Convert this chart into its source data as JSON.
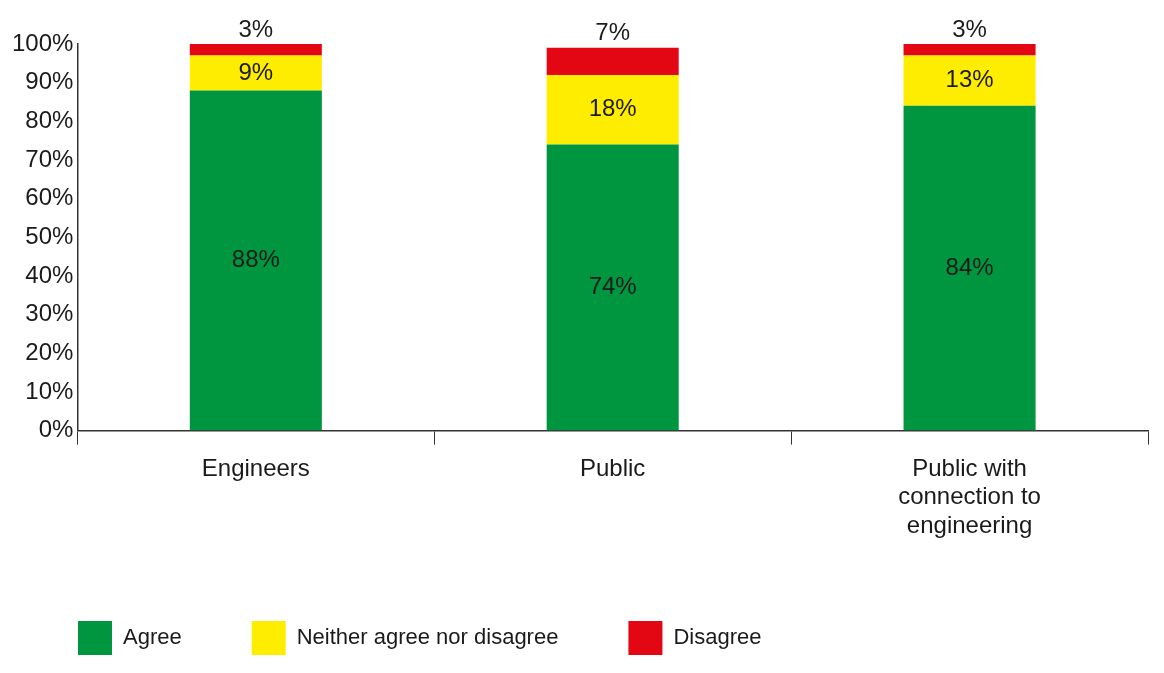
{
  "chart_data": {
    "type": "bar",
    "stacked": true,
    "categories": [
      "Engineers",
      "Public",
      "Public with connection to engineering"
    ],
    "series": [
      {
        "name": "Agree",
        "color": "#009640",
        "values": [
          88,
          74,
          84
        ],
        "value_labels": [
          "88%",
          "74%",
          "84%"
        ]
      },
      {
        "name": "Neither agree nor disagree",
        "color": "#ffed00",
        "values": [
          9,
          18,
          13
        ],
        "value_labels": [
          "9%",
          "18%",
          "13%"
        ]
      },
      {
        "name": "Disagree",
        "color": "#e30613",
        "values": [
          3,
          7,
          3
        ],
        "value_labels": [
          "3%",
          "7%",
          "3%"
        ]
      }
    ],
    "ylim": [
      0,
      100
    ],
    "yticks": [
      {
        "value": 0,
        "label": "0%"
      },
      {
        "value": 10,
        "label": "10%"
      },
      {
        "value": 20,
        "label": "20%"
      },
      {
        "value": 30,
        "label": "30%"
      },
      {
        "value": 40,
        "label": "40%"
      },
      {
        "value": 50,
        "label": "50%"
      },
      {
        "value": 60,
        "label": "60%"
      },
      {
        "value": 70,
        "label": "70%"
      },
      {
        "value": 80,
        "label": "80%"
      },
      {
        "value": 90,
        "label": "90%"
      },
      {
        "value": 100,
        "label": "100%"
      }
    ],
    "grid": false,
    "legend": "bottom"
  }
}
